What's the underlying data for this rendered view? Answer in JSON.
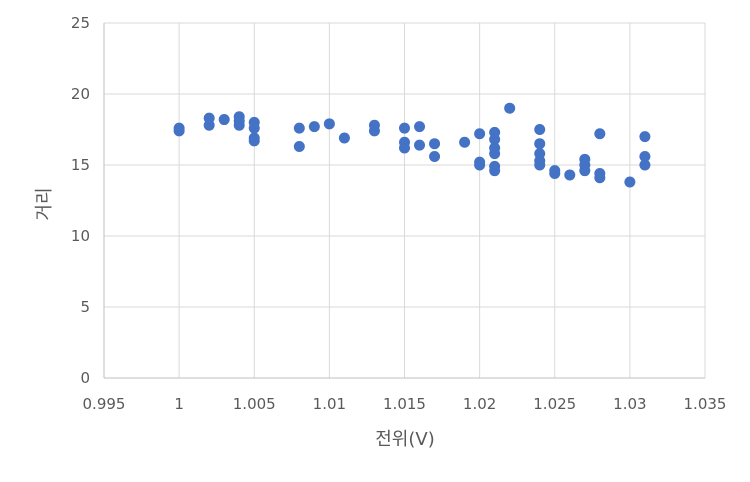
{
  "chart_data": {
    "type": "scatter",
    "title": "",
    "xlabel": "전위(V)",
    "ylabel": "거리",
    "xlim": [
      0.995,
      1.035
    ],
    "ylim": [
      0,
      25
    ],
    "x_ticks": [
      "0.995",
      "1",
      "1.005",
      "1.01",
      "1.015",
      "1.02",
      "1.025",
      "1.03",
      "1.035"
    ],
    "y_ticks": [
      "0",
      "5",
      "10",
      "15",
      "20",
      "25"
    ],
    "grid": "vertical and horizontal major gridlines",
    "legend": "none",
    "marker_color": "#4472C4",
    "series": [
      {
        "x": [
          1.0,
          1.0,
          1.002,
          1.002,
          1.003,
          1.004,
          1.004,
          1.004,
          1.005,
          1.005,
          1.005,
          1.005,
          1.008,
          1.008,
          1.009,
          1.01,
          1.011,
          1.013,
          1.013,
          1.015,
          1.015,
          1.015,
          1.016,
          1.016,
          1.017,
          1.017,
          1.019,
          1.02,
          1.02,
          1.02,
          1.021,
          1.021,
          1.021,
          1.021,
          1.021,
          1.021,
          1.022,
          1.024,
          1.024,
          1.024,
          1.024,
          1.024,
          1.025,
          1.025,
          1.026,
          1.027,
          1.027,
          1.027,
          1.028,
          1.028,
          1.028,
          1.03,
          1.031,
          1.031,
          1.031
        ],
        "y": [
          17.6,
          17.4,
          18.3,
          17.8,
          18.2,
          18.4,
          18.1,
          17.8,
          18.0,
          17.6,
          16.9,
          16.7,
          17.6,
          16.3,
          17.7,
          17.9,
          16.9,
          17.8,
          17.4,
          17.6,
          16.6,
          16.2,
          17.7,
          16.4,
          16.5,
          15.6,
          16.6,
          17.2,
          15.2,
          15.0,
          17.3,
          16.8,
          16.2,
          15.8,
          14.9,
          14.6,
          19.0,
          17.5,
          16.5,
          15.8,
          15.3,
          15.0,
          14.6,
          14.4,
          14.3,
          15.4,
          15.0,
          14.6,
          17.2,
          14.4,
          14.1,
          13.8,
          17.0,
          15.6,
          15.0
        ]
      }
    ]
  }
}
